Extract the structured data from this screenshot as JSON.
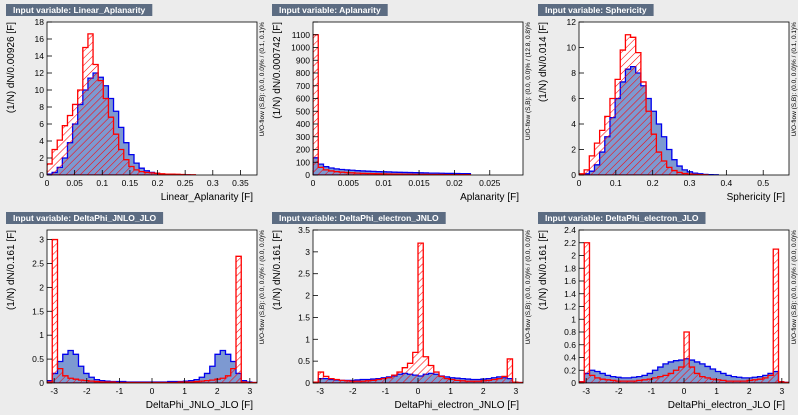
{
  "colors": {
    "background": "#ececec",
    "title_box": "#5c6c82",
    "signal_fill": "#7d99d1",
    "signal_line": "#0000ee",
    "background_line": "#ff0000"
  },
  "chart_data": [
    {
      "type": "histogram",
      "title": "Input variable: Linear_Aplanarity",
      "xlabel": "Linear_Aplanarity  [F]",
      "ylabel": "(1/N) dN/0.00926 [F]",
      "side_label": "U/O-flow (S,B): (0.0, 0.0)% / (0.1, 0.1)%",
      "xlim": [
        0,
        0.38
      ],
      "ylim": [
        0,
        18
      ],
      "xticks": [
        0,
        0.05,
        0.1,
        0.15,
        0.2,
        0.25,
        0.3,
        0.35
      ],
      "xtick_labels": [
        "0",
        "0.05",
        "0.1",
        "0.15",
        "0.2",
        "0.25",
        "0.3",
        "0.35"
      ],
      "yticks": [
        0,
        2,
        4,
        6,
        8,
        10,
        12,
        14,
        16,
        18
      ],
      "ytick_labels": [
        "0",
        "2",
        "4",
        "6",
        "8",
        "10",
        "12",
        "14",
        "16",
        "18"
      ],
      "bins_x0": 0,
      "bin_width": 0.00926,
      "series": [
        {
          "role": "signal",
          "values": [
            0.1,
            0.3,
            0.9,
            2.0,
            3.8,
            6.0,
            8.3,
            10.0,
            11.4,
            12.0,
            11.5,
            10.5,
            9.0,
            7.5,
            5.6,
            3.8,
            2.4,
            1.4,
            0.8,
            0.5,
            0.3,
            0.2,
            0.1,
            0.05,
            0.05,
            0.03,
            0.02,
            0.01
          ]
        },
        {
          "role": "background",
          "values": [
            1.3,
            3.0,
            4.1,
            5.8,
            7.0,
            8.3,
            10.0,
            15.0,
            16.6,
            13.0,
            11.1,
            9.0,
            6.8,
            4.8,
            3.0,
            1.8,
            1.0,
            0.6,
            0.4,
            0.3,
            0.25,
            0.2,
            0.15,
            0.1,
            0.1,
            0.08,
            0.05,
            0.03,
            0.02
          ]
        }
      ]
    },
    {
      "type": "histogram",
      "title": "Input variable: Aplanarity",
      "xlabel": "Aplanarity  [F]",
      "ylabel": "(1/N) dN/0.000742 [F]",
      "side_label": "U/O-flow (S,B): (0.0, 0.0)% / (12.8, 0.8)%",
      "xlim": [
        0,
        0.0297
      ],
      "ylim": [
        0,
        1200
      ],
      "xticks": [
        0,
        0.005,
        0.01,
        0.015,
        0.02,
        0.025
      ],
      "xtick_labels": [
        "0",
        "0.005",
        "0.01",
        "0.015",
        "0.02",
        "0.025"
      ],
      "yticks": [
        0,
        100,
        200,
        300,
        400,
        500,
        600,
        700,
        800,
        900,
        1000,
        1100,
        1200
      ],
      "ytick_labels": [
        "0",
        "100",
        "200",
        "300",
        "400",
        "500",
        "600",
        "700",
        "800",
        "900",
        "1000",
        "1100",
        ""
      ],
      "bins_x0": 0,
      "bin_width": 0.000742,
      "series": [
        {
          "role": "signal",
          "values": [
            135,
            85,
            65,
            55,
            48,
            43,
            40,
            37,
            34,
            32,
            30,
            28,
            26,
            25,
            24,
            22,
            21,
            20,
            19,
            18,
            17,
            16,
            15,
            15,
            14,
            13,
            13,
            12,
            11,
            11
          ]
        },
        {
          "role": "background",
          "values": [
            1100,
            60,
            40,
            32,
            26,
            22,
            19,
            17,
            15,
            13,
            12,
            11,
            10,
            9,
            8,
            7,
            7,
            6,
            6,
            5,
            5,
            5,
            4,
            4,
            4,
            3,
            3,
            3,
            3,
            3
          ]
        }
      ]
    },
    {
      "type": "histogram",
      "title": "Input variable: Sphericity",
      "xlabel": "Sphericity  [F]",
      "ylabel": "(1/N) dN/0.014 [F]",
      "side_label": "U/O-flow (S,B): (0.0, 0.0)% / (0.1, 0.1)%",
      "xlim": [
        0,
        0.57
      ],
      "ylim": [
        0,
        12
      ],
      "xticks": [
        0,
        0.1,
        0.2,
        0.3,
        0.4,
        0.5
      ],
      "xtick_labels": [
        "0",
        "0.1",
        "0.2",
        "0.3",
        "0.4",
        "0.5"
      ],
      "yticks": [
        0,
        2,
        4,
        6,
        8,
        10,
        12
      ],
      "ytick_labels": [
        "0",
        "2",
        "4",
        "6",
        "8",
        "10",
        "12"
      ],
      "bins_x0": 0,
      "bin_width": 0.014,
      "series": [
        {
          "role": "signal",
          "values": [
            0.0,
            0.1,
            0.3,
            0.8,
            1.8,
            3.0,
            4.5,
            6.0,
            7.3,
            8.3,
            8.5,
            8.0,
            7.0,
            6.0,
            5.0,
            4.0,
            3.0,
            2.0,
            1.2,
            0.7,
            0.4,
            0.25,
            0.15,
            0.1,
            0.05,
            0.03,
            0.02
          ]
        },
        {
          "role": "background",
          "values": [
            0.1,
            0.4,
            1.5,
            2.5,
            3.5,
            4.6,
            6.0,
            7.5,
            9.8,
            11.0,
            10.8,
            9.6,
            7.3,
            5.0,
            3.2,
            1.8,
            1.1,
            0.6,
            0.35,
            0.2,
            0.12,
            0.08,
            0.05,
            0.03,
            0.02
          ]
        }
      ]
    },
    {
      "type": "histogram",
      "title": "Input variable: DeltaPhi_JNLO_JLO",
      "xlabel": "DeltaPhi_JNLO_JLO  [F]",
      "ylabel": "(1/N) dN/0.161 [F]",
      "side_label": "U/O-flow (S,B): (0.0, 0.0)% / (0.0, 0.0)%",
      "xlim": [
        -3.22,
        3.22
      ],
      "ylim": [
        0,
        3.2
      ],
      "xticks": [
        -3,
        -2,
        -1,
        0,
        1,
        2,
        3
      ],
      "xtick_labels": [
        "-3",
        "-2",
        "-1",
        "0",
        "1",
        "2",
        "3"
      ],
      "yticks": [
        0,
        0.5,
        1,
        1.5,
        2,
        2.5,
        3
      ],
      "ytick_labels": [
        "0",
        "0.5",
        "1",
        "1.5",
        "2",
        "2.5",
        "3"
      ],
      "bins_x0": -3.22,
      "bin_width": 0.161,
      "series": [
        {
          "role": "signal",
          "values": [
            0.05,
            0.2,
            0.45,
            0.6,
            0.68,
            0.6,
            0.35,
            0.2,
            0.12,
            0.07,
            0.05,
            0.04,
            0.03,
            0.03,
            0.03,
            0.02,
            0.02,
            0.02,
            0.02,
            0.02,
            0.02,
            0.02,
            0.02,
            0.03,
            0.03,
            0.03,
            0.04,
            0.05,
            0.07,
            0.12,
            0.2,
            0.35,
            0.6,
            0.68,
            0.6,
            0.45,
            0.2,
            0.05,
            0.02,
            0.01
          ]
        },
        {
          "role": "background",
          "values": [
            0.02,
            3.0,
            0.3,
            0.15,
            0.1,
            0.08,
            0.06,
            0.05,
            0.04,
            0.03,
            0.02,
            0.02,
            0.02,
            0.01,
            0.01,
            0.01,
            0.01,
            0.01,
            0.01,
            0.01,
            0.01,
            0.01,
            0.01,
            0.01,
            0.01,
            0.02,
            0.02,
            0.02,
            0.03,
            0.04,
            0.05,
            0.06,
            0.08,
            0.1,
            0.15,
            0.3,
            2.65,
            0.02,
            0.01,
            0.01
          ]
        }
      ]
    },
    {
      "type": "histogram",
      "title": "Input variable: DeltaPhi_electron_JNLO",
      "xlabel": "DeltaPhi_electron_JNLO  [F]",
      "ylabel": "(1/N) dN/0.161 [F]",
      "side_label": "U/O-flow (S,B): (0.0, 0.0)% / (0.0, 0.0)%",
      "xlim": [
        -3.22,
        3.22
      ],
      "ylim": [
        0,
        3.5
      ],
      "xticks": [
        -3,
        -2,
        -1,
        0,
        1,
        2,
        3
      ],
      "xtick_labels": [
        "-3",
        "-2",
        "-1",
        "0",
        "1",
        "2",
        "3"
      ],
      "yticks": [
        0,
        0.5,
        1,
        1.5,
        2,
        2.5,
        3,
        3.5
      ],
      "ytick_labels": [
        "0",
        "0.5",
        "1",
        "1.5",
        "2",
        "2.5",
        "3",
        "3.5"
      ],
      "bins_x0": -3.22,
      "bin_width": 0.161,
      "series": [
        {
          "role": "signal",
          "values": [
            0.02,
            0.1,
            0.1,
            0.08,
            0.07,
            0.06,
            0.06,
            0.06,
            0.07,
            0.08,
            0.08,
            0.09,
            0.1,
            0.12,
            0.14,
            0.16,
            0.2,
            0.22,
            0.2,
            0.18,
            0.16,
            0.2,
            0.22,
            0.2,
            0.16,
            0.14,
            0.12,
            0.11,
            0.1,
            0.09,
            0.08,
            0.08,
            0.09,
            0.1,
            0.12,
            0.14,
            0.12,
            0.1,
            0.02,
            0.01
          ]
        },
        {
          "role": "background",
          "values": [
            0.02,
            0.25,
            0.15,
            0.1,
            0.08,
            0.06,
            0.05,
            0.04,
            0.04,
            0.04,
            0.05,
            0.06,
            0.08,
            0.1,
            0.12,
            0.18,
            0.25,
            0.35,
            0.45,
            0.7,
            3.2,
            0.6,
            0.4,
            0.25,
            0.15,
            0.1,
            0.08,
            0.06,
            0.05,
            0.04,
            0.04,
            0.04,
            0.05,
            0.06,
            0.08,
            0.1,
            0.15,
            0.55,
            0.02,
            0.01
          ]
        }
      ]
    },
    {
      "type": "histogram",
      "title": "Input variable: DeltaPhi_electron_JLO",
      "xlabel": "DeltaPhi_electron_JLO  [F]",
      "ylabel": "(1/N) dN/0.161 [F]",
      "side_label": "U/O-flow (S,B): (0.0, 0.0)% / (0.0, 0.0)%",
      "xlim": [
        -3.22,
        3.22
      ],
      "ylim": [
        0,
        2.4
      ],
      "xticks": [
        -3,
        -2,
        -1,
        0,
        1,
        2,
        3
      ],
      "xtick_labels": [
        "-3",
        "-2",
        "-1",
        "0",
        "1",
        "2",
        "3"
      ],
      "yticks": [
        0,
        0.2,
        0.4,
        0.6,
        0.8,
        1,
        1.2,
        1.4,
        1.6,
        1.8,
        2,
        2.2,
        2.4
      ],
      "ytick_labels": [
        "0",
        "0.2",
        "0.4",
        "0.6",
        "0.8",
        "1",
        "1.2",
        "1.4",
        "1.6",
        "1.8",
        "2",
        "2.2",
        "2.4"
      ],
      "bins_x0": -3.22,
      "bin_width": 0.161,
      "series": [
        {
          "role": "signal",
          "values": [
            0.02,
            0.15,
            0.2,
            0.18,
            0.15,
            0.12,
            0.1,
            0.09,
            0.08,
            0.08,
            0.09,
            0.1,
            0.12,
            0.15,
            0.2,
            0.25,
            0.3,
            0.33,
            0.35,
            0.36,
            0.38,
            0.36,
            0.33,
            0.3,
            0.26,
            0.22,
            0.18,
            0.15,
            0.12,
            0.1,
            0.09,
            0.08,
            0.08,
            0.09,
            0.1,
            0.12,
            0.15,
            0.18,
            0.02,
            0.01
          ]
        },
        {
          "role": "background",
          "values": [
            0.02,
            2.2,
            0.12,
            0.08,
            0.06,
            0.05,
            0.04,
            0.03,
            0.03,
            0.03,
            0.03,
            0.04,
            0.05,
            0.06,
            0.08,
            0.1,
            0.12,
            0.15,
            0.2,
            0.25,
            0.8,
            0.25,
            0.15,
            0.1,
            0.08,
            0.06,
            0.05,
            0.04,
            0.03,
            0.03,
            0.03,
            0.03,
            0.04,
            0.05,
            0.06,
            0.08,
            0.12,
            2.1,
            0.02,
            0.01
          ]
        }
      ]
    }
  ]
}
